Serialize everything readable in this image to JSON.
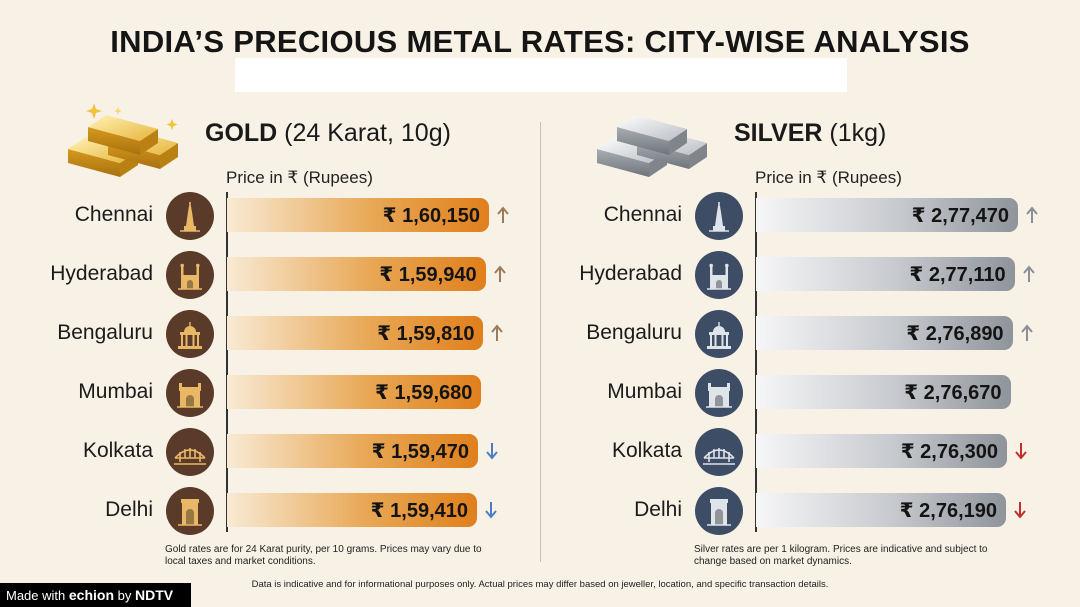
{
  "title": "INDIA’S PRECIOUS METAL RATES: CITY-WISE ANALYSIS",
  "colors": {
    "background": "#f8f1e6",
    "gold_bar": "#e07f1c",
    "silver_bar": "#8f949b",
    "gold_badge": "#5a3b2a",
    "silver_badge": "#3d4d65",
    "trend_up": "#9c7b5a",
    "trend_down_gold": "#4a7dc4",
    "trend_down_silver": "#c0302b"
  },
  "gold": {
    "heading_bold": "GOLD",
    "heading_rest": " (24 Karat, 10g)",
    "price_label": "Price in ₹ (Rupees)",
    "note": "Gold rates are for 24 Karat purity, per 10 grams. Prices may vary due to local taxes and market conditions.",
    "icon": "gold-bars-icon"
  },
  "silver": {
    "heading_bold": "SILVER",
    "heading_rest": " (1kg)",
    "price_label": "Price in ₹ (Rupees)",
    "note": "Silver rates are per 1 kilogram. Prices are indicative and subject to change based on market dynamics.",
    "icon": "silver-bars-icon"
  },
  "footer_note": "Data is indicative and for informational purposes only. Actual prices may differ based on jeweller, location, and specific transaction details.",
  "brand": {
    "prefix": "Made with ",
    "name": "echion",
    "by": " by ",
    "owner": "NDTV"
  },
  "chart_data": [
    {
      "type": "bar",
      "orientation": "horizontal",
      "categories": [
        "Chennai",
        "Hyderabad",
        "Bengaluru",
        "Mumbai",
        "Kolkata",
        "Delhi"
      ],
      "values": [
        160150,
        159940,
        159810,
        159680,
        159470,
        159410
      ],
      "value_labels": [
        "₹ 1,60,150",
        "₹ 1,59,940",
        "₹ 1,59,810",
        "₹ 1,59,680",
        "₹ 1,59,470",
        "₹ 1,59,410"
      ],
      "trends": [
        "up",
        "up",
        "up",
        "none",
        "down",
        "down"
      ],
      "city_icons": [
        "temple-gopuram-icon",
        "charminar-icon",
        "vidhana-soudha-icon",
        "gateway-of-india-icon",
        "howrah-bridge-icon",
        "india-gate-icon"
      ],
      "title": "GOLD (24 Karat, 10g)",
      "xlabel": "Price in ₹ (Rupees)",
      "legend": "none",
      "grid": false
    },
    {
      "type": "bar",
      "orientation": "horizontal",
      "categories": [
        "Chennai",
        "Hyderabad",
        "Bengaluru",
        "Mumbai",
        "Kolkata",
        "Delhi"
      ],
      "values": [
        277470,
        277110,
        276890,
        276670,
        276300,
        276190
      ],
      "value_labels": [
        "₹ 2,77,470",
        "₹ 2,77,110",
        "₹ 2,76,890",
        "₹ 2,76,670",
        "₹ 2,76,300",
        "₹ 2,76,190"
      ],
      "trends": [
        "up",
        "up",
        "up",
        "none",
        "down",
        "down"
      ],
      "city_icons": [
        "temple-gopuram-icon",
        "charminar-icon",
        "vidhana-soudha-icon",
        "gateway-of-india-icon",
        "howrah-bridge-icon",
        "india-gate-icon"
      ],
      "title": "SILVER (1kg)",
      "xlabel": "Price in ₹ (Rupees)",
      "legend": "none",
      "grid": false
    }
  ]
}
